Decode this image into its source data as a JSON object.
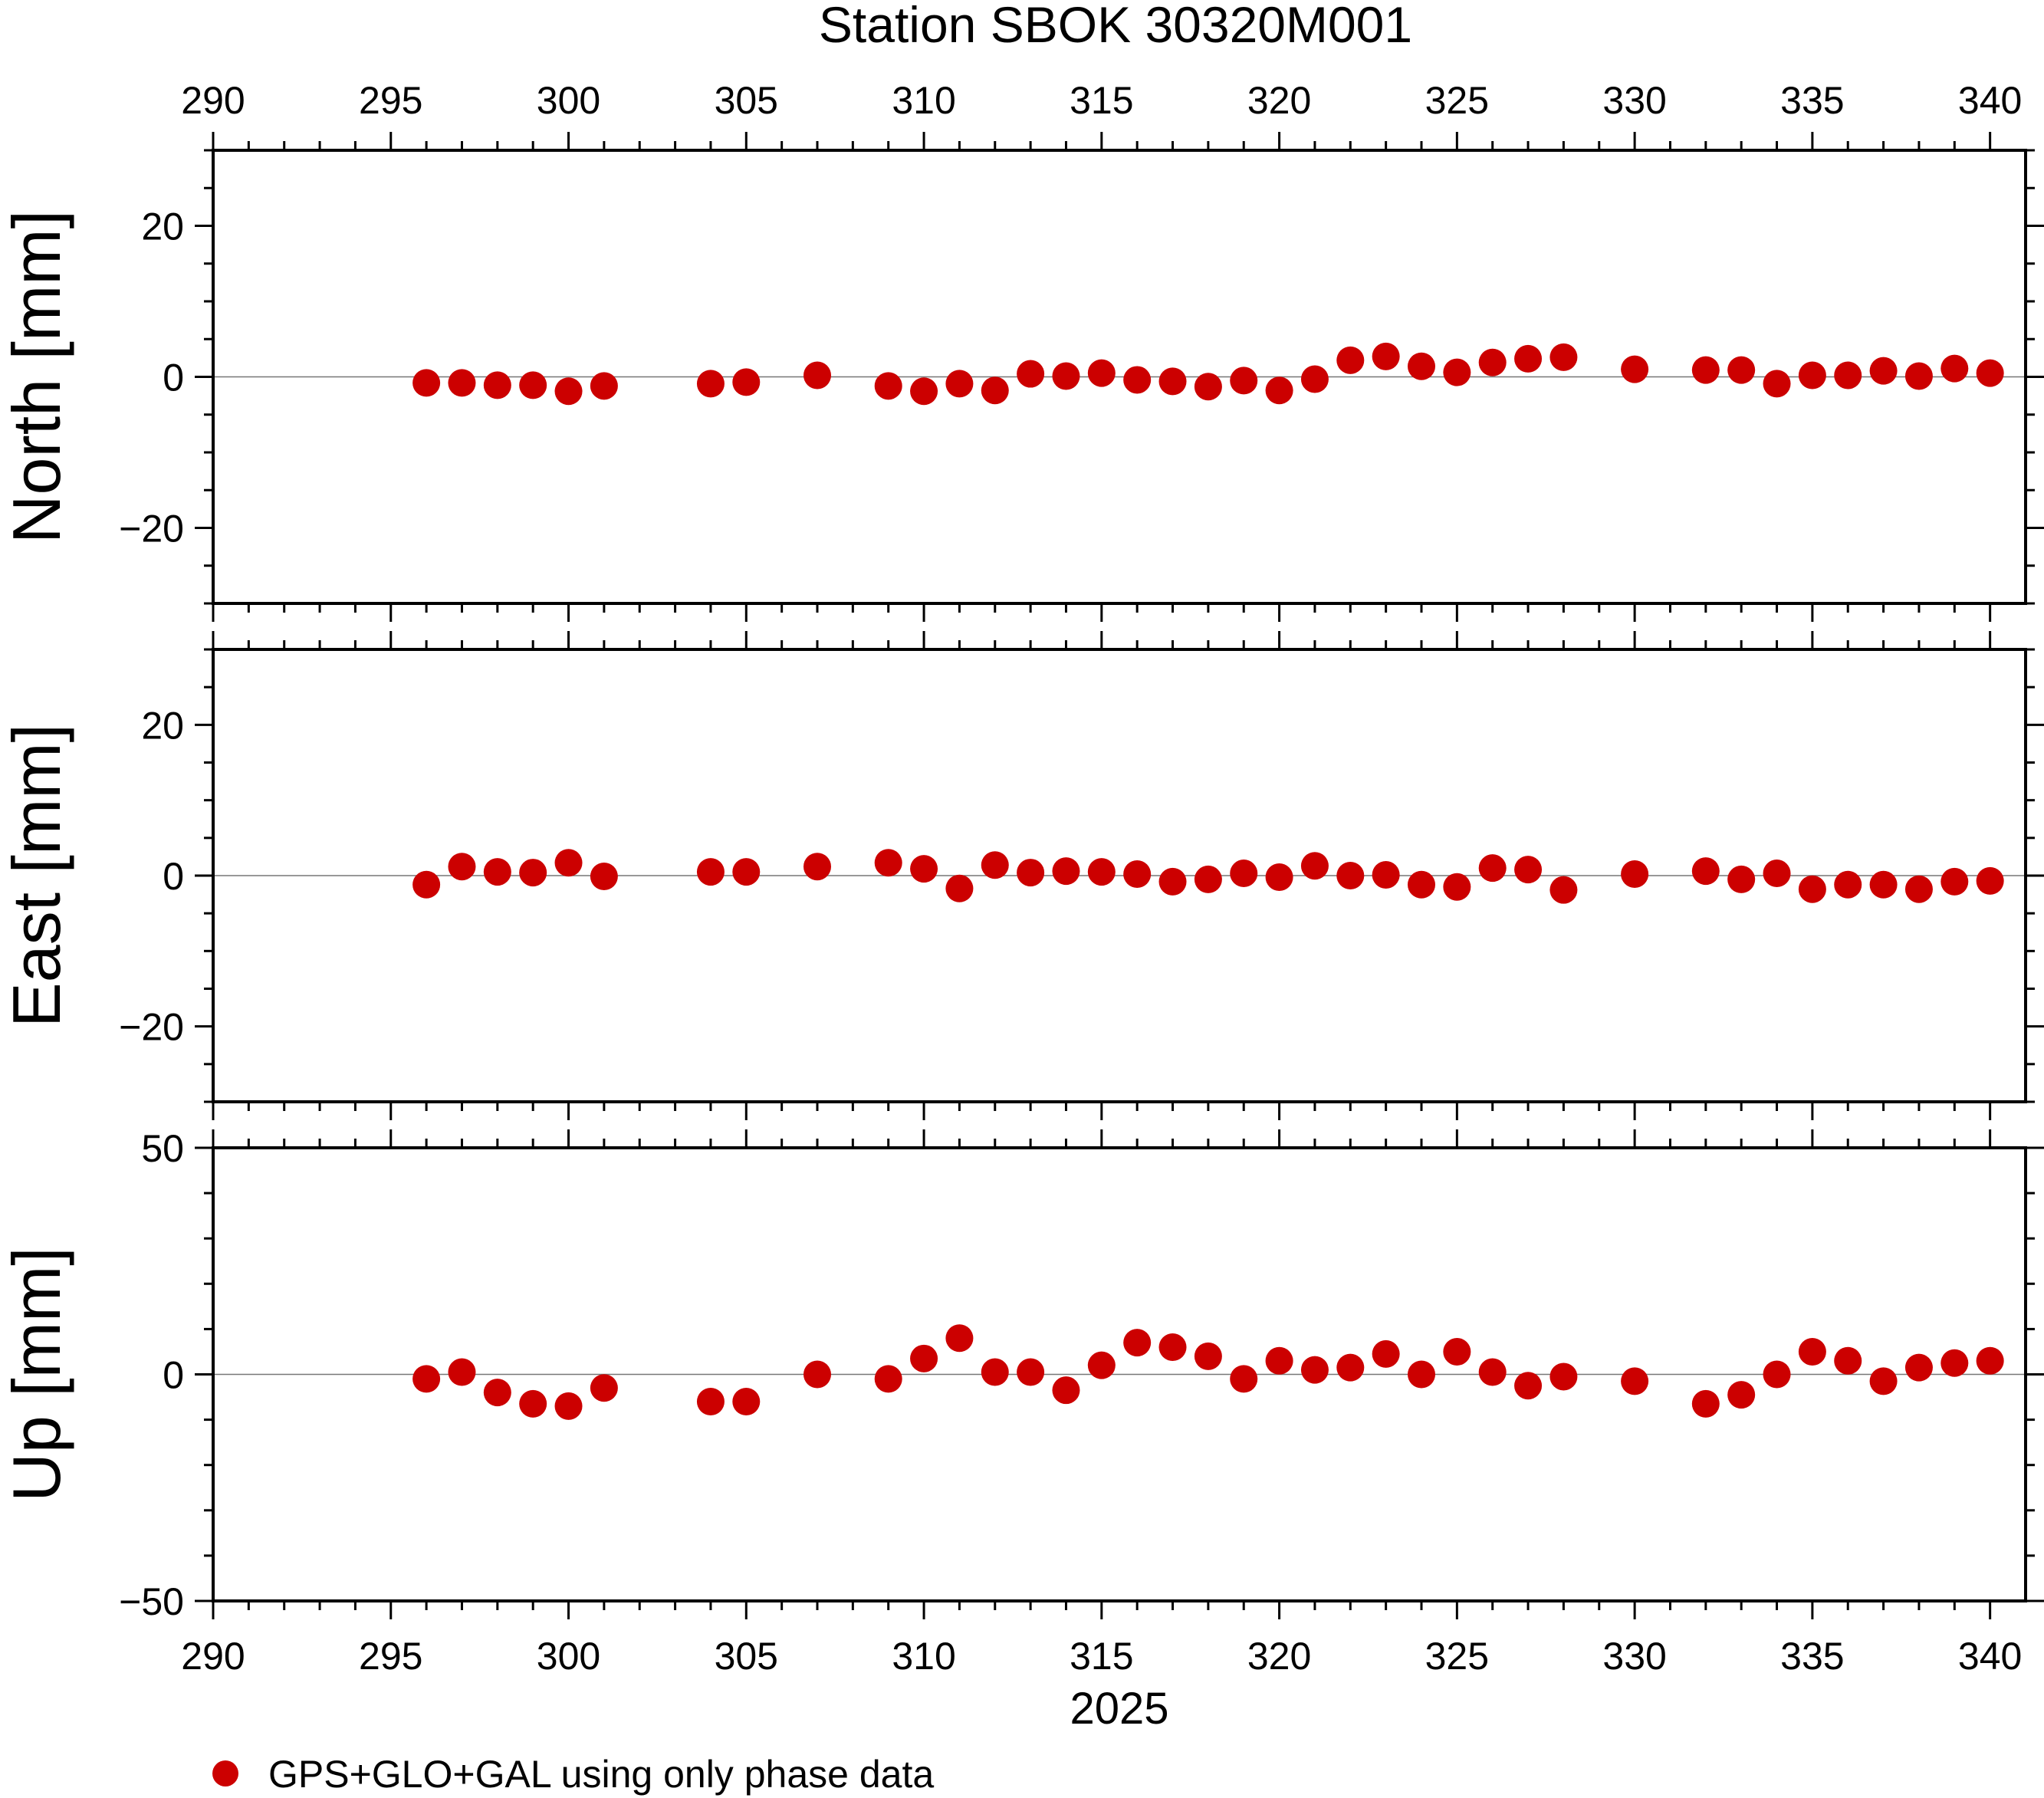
{
  "chart_data": {
    "type": "scatter",
    "title": "Station SBOK 30320M001",
    "xlabel": "2025",
    "xlim": [
      290,
      341
    ],
    "x_ticks": [
      290,
      295,
      300,
      305,
      310,
      315,
      320,
      325,
      330,
      335,
      340
    ],
    "marker_color": "#cc0000",
    "legend": {
      "label": "GPS+GLO+GAL using only phase data",
      "placement": "bottom-left"
    },
    "x": [
      296,
      297,
      298,
      299,
      300,
      301,
      304,
      305,
      307,
      309,
      310,
      311,
      312,
      313,
      314,
      315,
      316,
      317,
      318,
      319,
      320,
      321,
      322,
      323,
      324,
      325,
      326,
      327,
      328,
      330,
      332,
      333,
      334,
      335,
      336,
      337,
      338,
      339,
      340
    ],
    "panels": [
      {
        "ylabel": "North [mm]",
        "ylim": [
          -30,
          30
        ],
        "y_ticks": [
          20,
          0,
          -20
        ],
        "y_tick_labels": [
          "20",
          "0",
          "−20"
        ],
        "y_minor_step": 5,
        "values": [
          -0.8,
          -0.8,
          -1.1,
          -1.1,
          -1.9,
          -1.2,
          -0.9,
          -0.7,
          0.2,
          -1.2,
          -1.9,
          -0.9,
          -1.8,
          0.4,
          0.1,
          0.5,
          -0.4,
          -0.6,
          -1.3,
          -0.5,
          -1.8,
          -0.3,
          2.2,
          2.7,
          1.4,
          0.6,
          1.9,
          2.4,
          2.6,
          1.0,
          0.9,
          0.9,
          -0.9,
          0.2,
          0.2,
          0.8,
          0.1,
          1.1,
          0.5
        ]
      },
      {
        "ylabel": "East [mm]",
        "ylim": [
          -30,
          30
        ],
        "y_ticks": [
          20,
          0,
          -20
        ],
        "y_tick_labels": [
          "20",
          "0",
          "−20"
        ],
        "y_minor_step": 5,
        "values": [
          -1.2,
          1.2,
          0.5,
          0.4,
          1.7,
          -0.1,
          0.5,
          0.5,
          1.2,
          1.7,
          0.9,
          -1.7,
          1.4,
          0.4,
          0.6,
          0.5,
          0.2,
          -0.8,
          -0.5,
          0.3,
          -0.2,
          1.3,
          0.0,
          0.1,
          -1.2,
          -1.5,
          1.0,
          0.8,
          -1.9,
          0.2,
          0.6,
          -0.5,
          0.3,
          -1.8,
          -1.2,
          -1.2,
          -1.8,
          -0.8,
          -0.7
        ]
      },
      {
        "ylabel": "Up [mm]",
        "ylim": [
          -50,
          50
        ],
        "y_ticks": [
          50,
          0,
          -50
        ],
        "y_tick_labels": [
          "50",
          "0",
          "−50"
        ],
        "y_minor_step": 10,
        "values": [
          -1.0,
          0.5,
          -4.0,
          -6.5,
          -7.0,
          -3.0,
          -6.0,
          -6.0,
          0.0,
          -1.0,
          3.5,
          8.0,
          0.5,
          0.5,
          -3.5,
          2.0,
          7.0,
          6.0,
          4.0,
          -1.0,
          3.0,
          1.0,
          1.5,
          4.5,
          0.0,
          5.0,
          0.5,
          -2.5,
          -0.5,
          -1.5,
          -6.5,
          -4.5,
          0.0,
          5.0,
          3.0,
          -1.5,
          1.5,
          2.5,
          3.0
        ]
      }
    ]
  }
}
